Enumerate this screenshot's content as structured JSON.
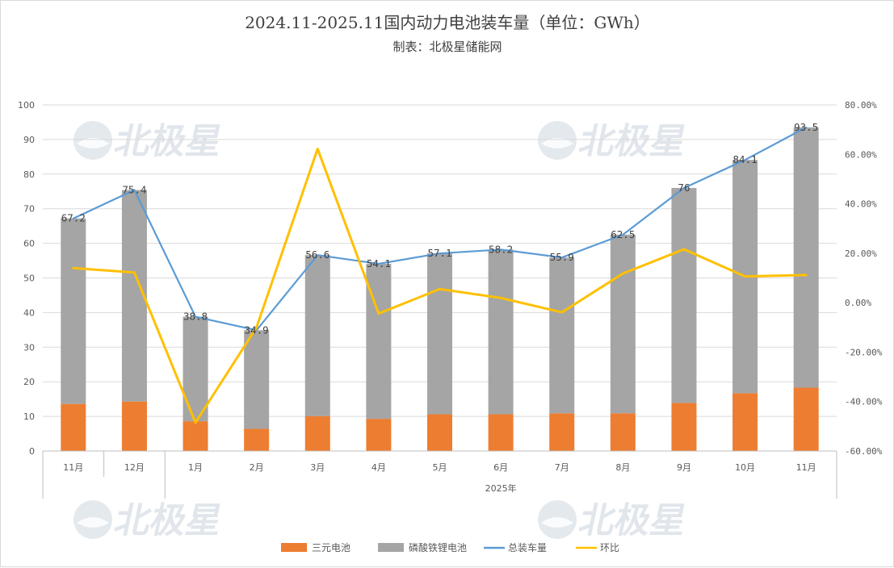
{
  "chart_data": {
    "type": "bar",
    "title": "2024.11-2025.11国内动力电池装车量（单位：GWh）",
    "subtitle": "制表：北极星储能网",
    "watermark": "北极星",
    "categories": [
      "11月",
      "12月",
      "1月",
      "2月",
      "3月",
      "4月",
      "5月",
      "6月",
      "7月",
      "8月",
      "9月",
      "10月",
      "11月"
    ],
    "year_group_label": "2025年",
    "stacked": true,
    "ylim": [
      0,
      100
    ],
    "y_ticks": [
      "0",
      "10",
      "20",
      "30",
      "40",
      "50",
      "60",
      "70",
      "80",
      "90",
      "100"
    ],
    "y2lim": [
      -0.6,
      0.8
    ],
    "y2_ticks": [
      "-60.00%",
      "-40.00%",
      "-20.00%",
      "0.00%",
      "20.00%",
      "40.00%",
      "60.00%",
      "80.00%"
    ],
    "series": [
      {
        "name": "三元电池",
        "kind": "bar",
        "color": "#ed7d31",
        "values": [
          13.6,
          14.3,
          8.6,
          6.4,
          10.1,
          9.3,
          10.6,
          10.6,
          10.9,
          10.9,
          13.9,
          16.7,
          18.3
        ]
      },
      {
        "name": "磷酸铁锂电池",
        "kind": "bar",
        "color": "#a5a5a5",
        "values": [
          53.6,
          61.1,
          30.2,
          28.5,
          46.5,
          44.8,
          46.5,
          47.6,
          45.0,
          51.6,
          62.1,
          67.4,
          75.2
        ]
      },
      {
        "name": "总装车量",
        "kind": "line",
        "color": "#5b9bd5",
        "values": [
          67.2,
          75.4,
          38.8,
          34.9,
          56.6,
          54.1,
          57.1,
          58.2,
          55.9,
          62.5,
          76,
          84.1,
          93.5
        ]
      },
      {
        "name": "环比",
        "kind": "line",
        "axis": "secondary",
        "color": "#ffc000",
        "values": [
          0.14,
          0.122,
          -0.485,
          -0.1,
          0.622,
          -0.044,
          0.055,
          0.019,
          -0.039,
          0.118,
          0.216,
          0.106,
          0.112
        ]
      }
    ],
    "data_labels": [
      "67.2",
      "75.4",
      "38.8",
      "34.9",
      "56.6",
      "54.1",
      "57.1",
      "58.2",
      "55.9",
      "62.5",
      "76",
      "84.1",
      "93.5"
    ],
    "legend": "bottom",
    "grid": true
  }
}
